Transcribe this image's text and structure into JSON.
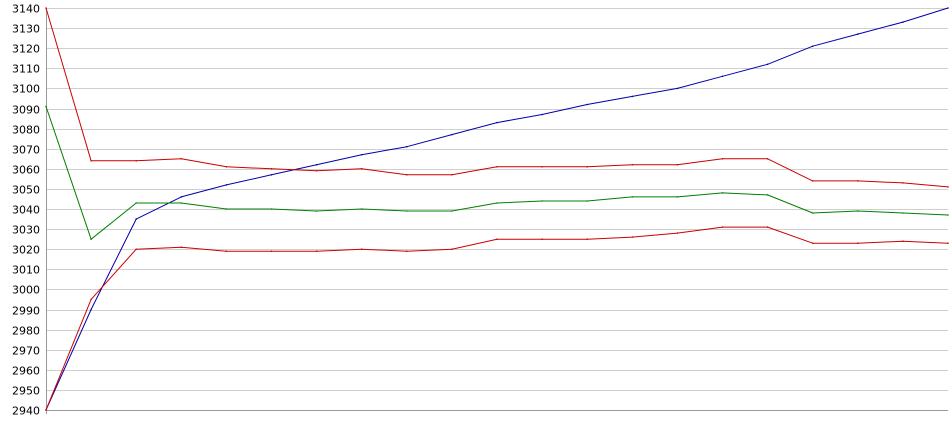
{
  "chart_data": {
    "type": "line",
    "title": "",
    "xlabel": "",
    "ylabel": "",
    "ylim": [
      2940,
      3140
    ],
    "yticks": [
      2940,
      2950,
      2960,
      2970,
      2980,
      2990,
      3000,
      3010,
      3020,
      3030,
      3040,
      3050,
      3060,
      3070,
      3080,
      3090,
      3100,
      3110,
      3120,
      3130,
      3140
    ],
    "grid": true,
    "legend": "none",
    "x": [
      0,
      5,
      10,
      15,
      20,
      25,
      30,
      35,
      40,
      45,
      50,
      55,
      60,
      65,
      70,
      75,
      80,
      85,
      90,
      95,
      100
    ],
    "series": [
      {
        "color": "#0000aa",
        "values": [
          2940,
          2990,
          3035,
          3046,
          3052,
          3057,
          3062,
          3067,
          3071,
          3077,
          3083,
          3087,
          3092,
          3096,
          3100,
          3106,
          3112,
          3121,
          3127,
          3133,
          3140
        ]
      },
      {
        "color": "#cc0000",
        "values": [
          3140,
          3064,
          3064,
          3065,
          3061,
          3060,
          3059,
          3060,
          3057,
          3057,
          3061,
          3061,
          3061,
          3062,
          3062,
          3065,
          3065,
          3054,
          3054,
          3053,
          3051
        ]
      },
      {
        "color": "#008000",
        "values": [
          3091,
          3025,
          3043,
          3043,
          3040,
          3040,
          3039,
          3040,
          3039,
          3039,
          3043,
          3044,
          3044,
          3046,
          3046,
          3048,
          3047,
          3038,
          3039,
          3038,
          3037
        ]
      },
      {
        "color": "#cc0000",
        "values": [
          2940,
          2995,
          3020,
          3021,
          3019,
          3019,
          3019,
          3020,
          3019,
          3020,
          3025,
          3025,
          3025,
          3026,
          3028,
          3031,
          3031,
          3023,
          3023,
          3024,
          3023
        ]
      }
    ]
  }
}
